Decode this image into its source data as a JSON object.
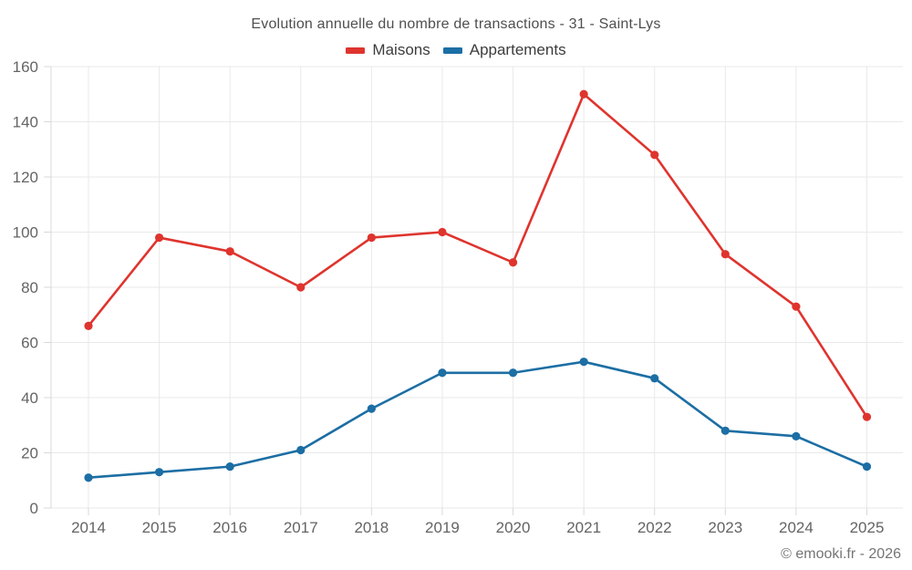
{
  "footer": {
    "credit": "© emooki.fr - 2026"
  },
  "chart_data": {
    "type": "line",
    "title": "Evolution annuelle du nombre de transactions - 31 - Saint-Lys",
    "categories": [
      "2014",
      "2015",
      "2016",
      "2017",
      "2018",
      "2019",
      "2020",
      "2021",
      "2022",
      "2023",
      "2024",
      "2025"
    ],
    "series": [
      {
        "name": "Maisons",
        "color": "#df342e",
        "values": [
          66,
          98,
          93,
          80,
          98,
          100,
          89,
          150,
          128,
          92,
          73,
          33
        ]
      },
      {
        "name": "Appartements",
        "color": "#1c6ea4",
        "values": [
          11,
          13,
          15,
          21,
          36,
          49,
          49,
          53,
          47,
          28,
          26,
          15
        ]
      }
    ],
    "xlabel": "",
    "ylabel": "",
    "ylim": [
      0,
      160
    ],
    "ytick_step": 20,
    "grid": true,
    "legend_position": "top",
    "grid_color": "#e9e9e9",
    "axis_color": "#d9d9d9",
    "tick_label_color": "#646464"
  }
}
